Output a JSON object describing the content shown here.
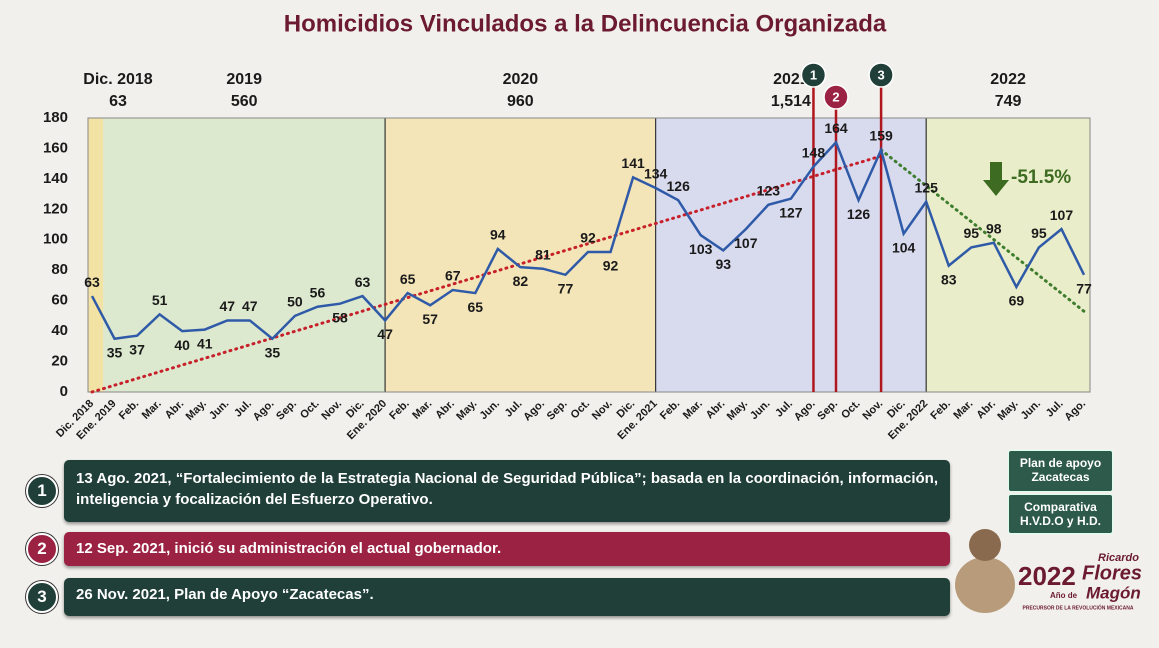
{
  "chart_data": {
    "type": "line",
    "title": "Homicidios Vinculados a la Delincuencia Organizada",
    "categories": [
      "Dic. 2018",
      "Ene. 2019",
      "Feb.",
      "Mar.",
      "Abr.",
      "May.",
      "Jun.",
      "Jul.",
      "Ago.",
      "Sep.",
      "Oct.",
      "Nov.",
      "Dic.",
      "Ene. 2020",
      "Feb.",
      "Mar.",
      "Abr.",
      "May.",
      "Jun.",
      "Jul.",
      "Ago.",
      "Sep.",
      "Oct.",
      "Nov.",
      "Dic.",
      "Ene. 2021",
      "Feb.",
      "Mar.",
      "Abr.",
      "May.",
      "Jun.",
      "Jul.",
      "Ago.",
      "Sep.",
      "Oct.",
      "Nov.",
      "Dic.",
      "Ene. 2022",
      "Feb.",
      "Mar.",
      "Abr.",
      "May.",
      "Jun.",
      "Jul.",
      "Ago."
    ],
    "values": [
      63,
      35,
      37,
      51,
      40,
      41,
      47,
      47,
      35,
      50,
      56,
      58,
      63,
      47,
      65,
      57,
      67,
      65,
      94,
      82,
      81,
      77,
      92,
      92,
      141,
      134,
      126,
      103,
      93,
      107,
      123,
      127,
      148,
      164,
      126,
      159,
      104,
      125,
      83,
      95,
      98,
      69,
      95,
      107,
      77
    ],
    "color": "#2f5aa8",
    "ylim": [
      0,
      180
    ],
    "yticks": [
      0,
      20,
      40,
      60,
      80,
      100,
      120,
      140,
      160,
      180
    ],
    "grid": false,
    "periods": [
      {
        "label": "Dic. 2018",
        "total": 63,
        "color": "#f2e2a4"
      },
      {
        "label": "2019",
        "total": 560,
        "color": "#dce9cf"
      },
      {
        "label": "2020",
        "total": 960,
        "color": "#f3e5b8"
      },
      {
        "label": "2021",
        "total": 1514,
        "total_label": "1,514",
        "color": "#d8dbee"
      },
      {
        "label": "2022",
        "total": 749,
        "color": "#e9edc9"
      }
    ],
    "trend_lines": [
      {
        "color": "#c8202b",
        "x": [
          0,
          35
        ],
        "values": [
          0,
          155
        ]
      },
      {
        "color": "#3f7d2e",
        "x": [
          35,
          44
        ],
        "values": [
          159,
          53
        ]
      }
    ],
    "change": {
      "value": -51.5,
      "label": "-51.5%",
      "color": "#3d6b22"
    },
    "events": [
      {
        "number": "1",
        "x": 32,
        "color": "#1f3f38",
        "text": "13 Ago. 2021, “Fortalecimiento de la Estrategia Nacional de Seguridad Pública”; basada en la coordinación, información, inteligencia y focalización del Esfuerzo Operativo."
      },
      {
        "number": "2",
        "x": 33,
        "color": "#9c2243",
        "text": "12 Sep. 2021, inició su administración el actual gobernador."
      },
      {
        "number": "3",
        "x": 35,
        "color": "#1f3f38",
        "text": "26 Nov. 2021, Plan de Apoyo “Zacatecas”."
      }
    ]
  },
  "buttons": [
    "Plan de apoyo Zacatecas",
    "Comparativa H.V.D.O y H.D."
  ],
  "logo": {
    "year": "2022",
    "subtitle": "Año de",
    "name": [
      "Ricardo",
      "Flores",
      "Magón"
    ],
    "caption": "PRECURSOR DE LA REVOLUCIÓN MEXICANA"
  }
}
